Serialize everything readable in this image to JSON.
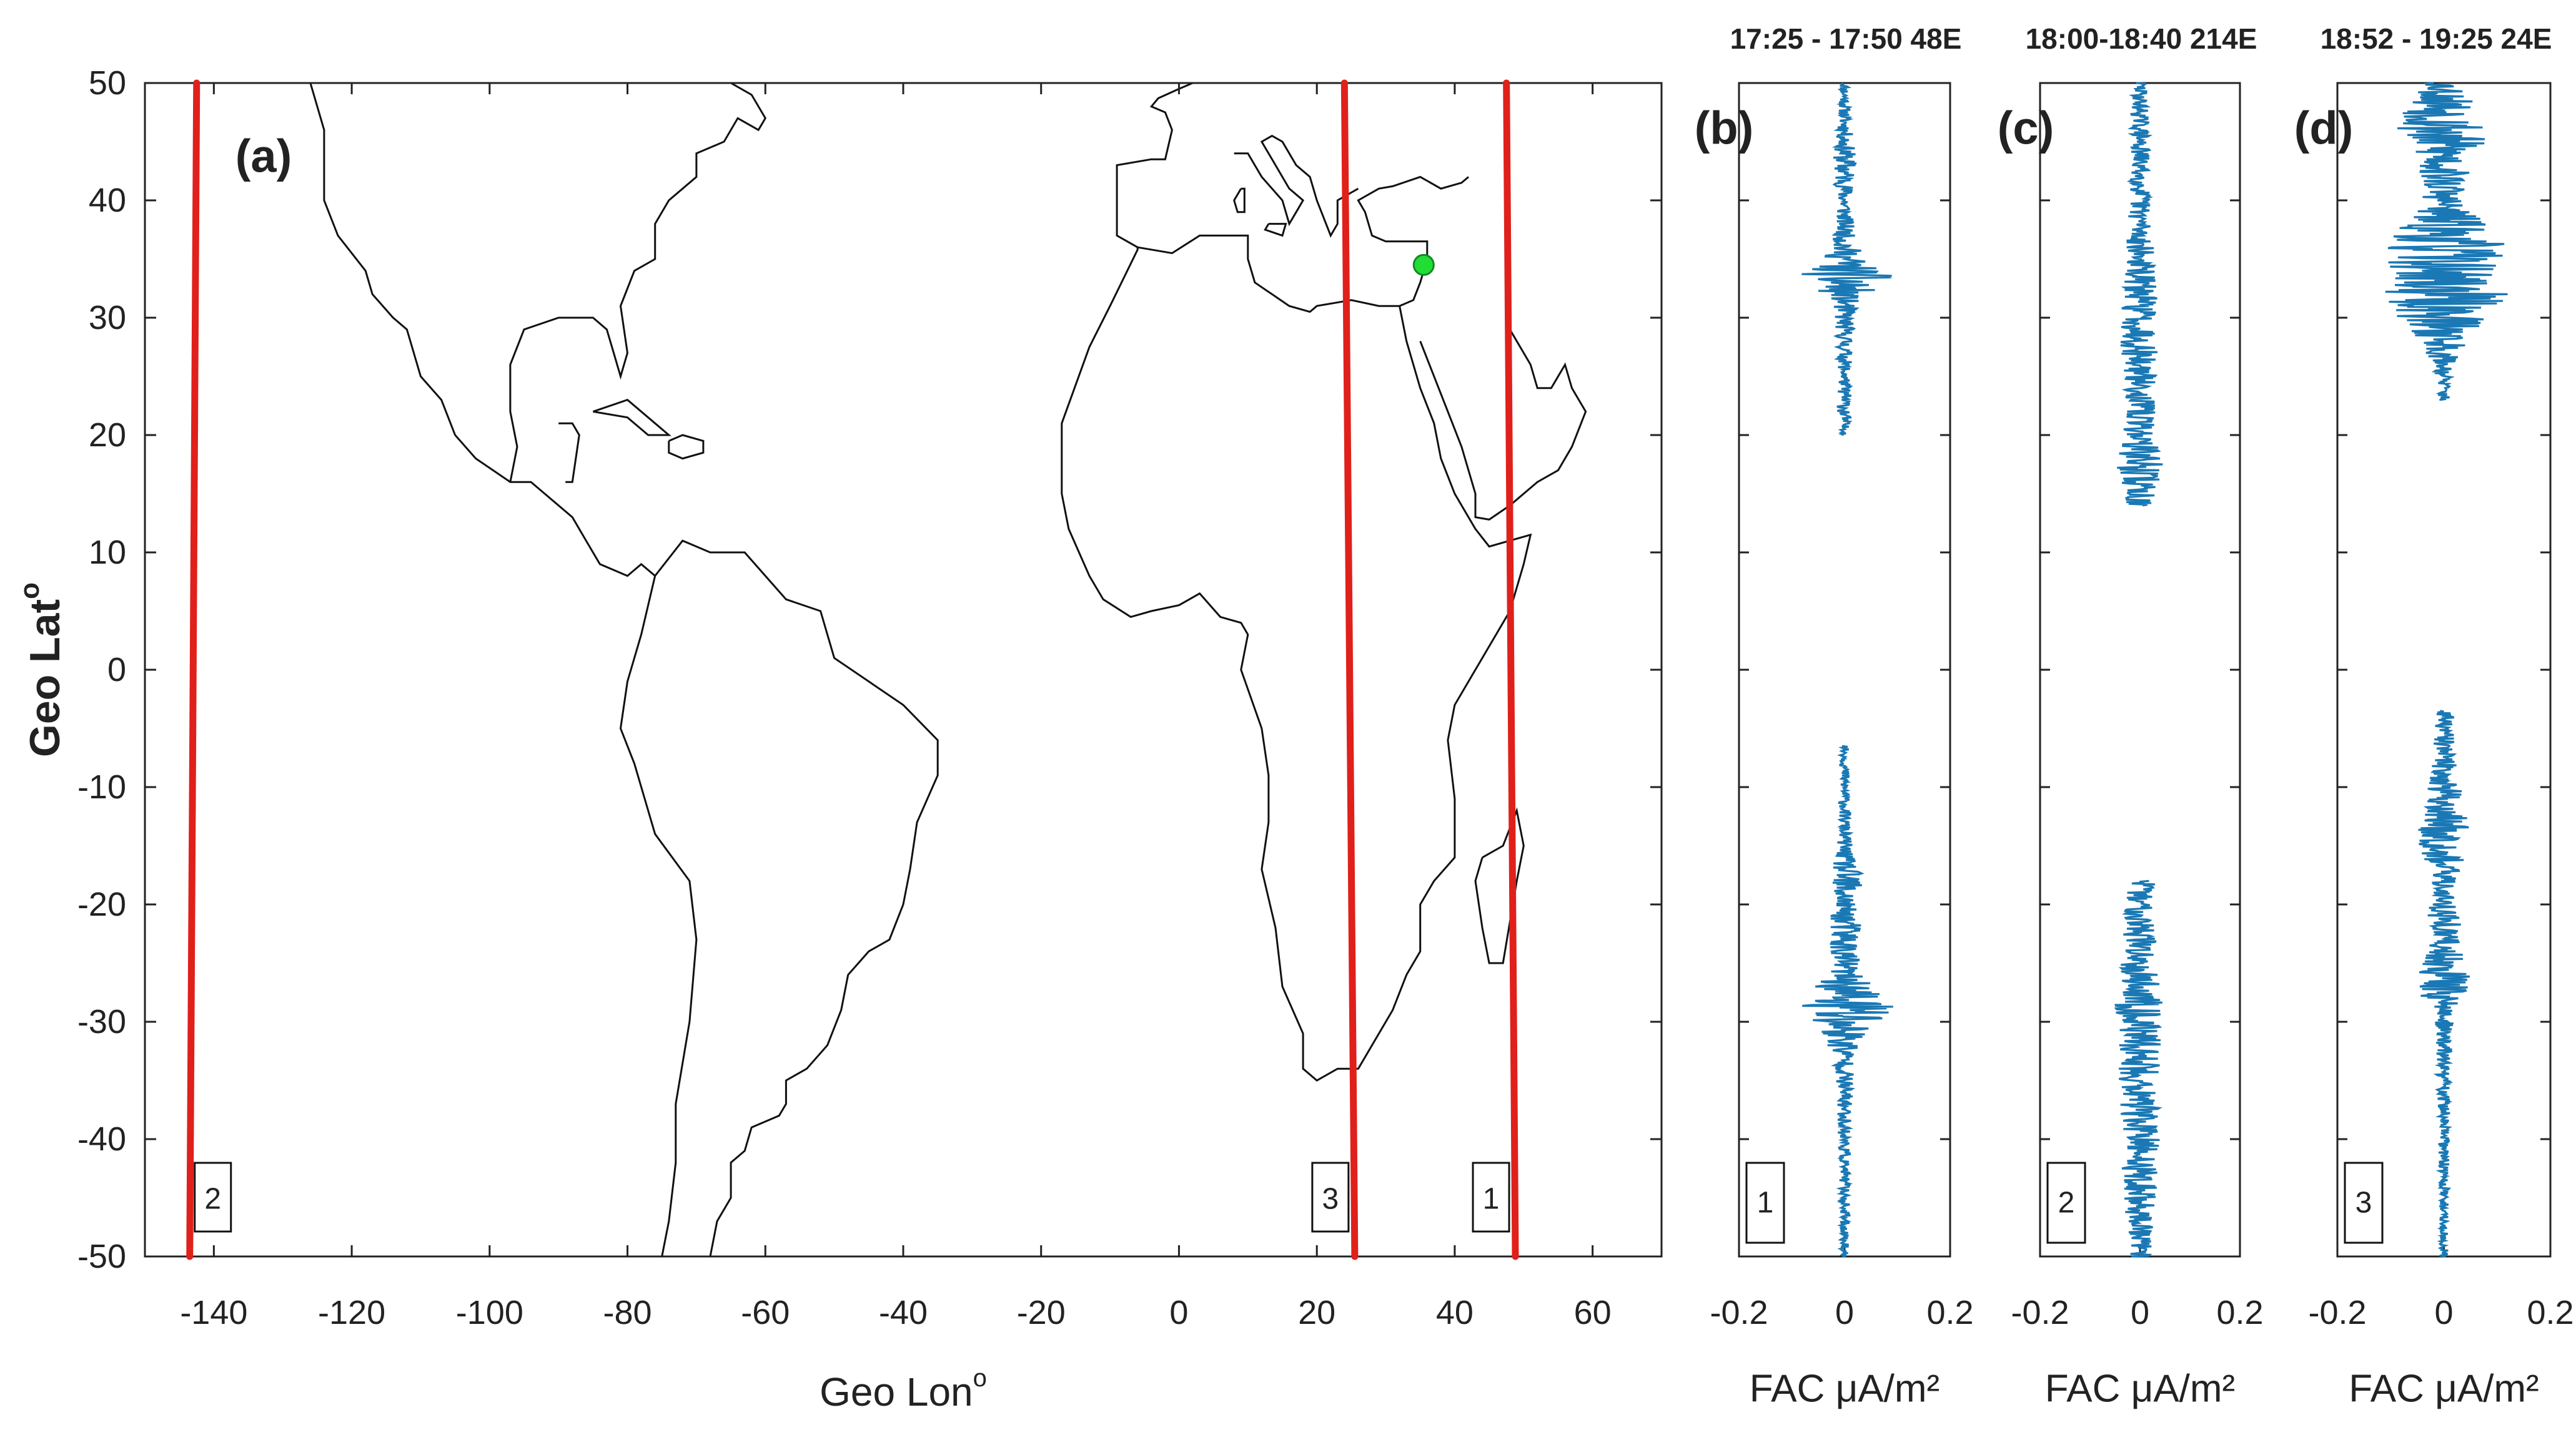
{
  "chart_data": [
    {
      "panel": "map",
      "type": "scatter",
      "panel_label": "(a)",
      "xlabel": "Geo Lon",
      "ylabel": "Geo Lat",
      "xlim": [
        -150,
        70
      ],
      "ylim": [
        -50,
        50
      ],
      "xticks": [
        "-140",
        "-120",
        "-100",
        "-80",
        "-60",
        "-40",
        "-20",
        "0",
        "20",
        "40",
        "60"
      ],
      "yticks": [
        "50",
        "40",
        "30",
        "20",
        "10",
        "0",
        "-10",
        "-20",
        "-30",
        "-40",
        "-50"
      ],
      "grid": false,
      "series": [
        {
          "name": "1",
          "color": "#e0201b",
          "x": [
            47.5,
            48.8
          ],
          "y": [
            50,
            -50
          ]
        },
        {
          "name": "2",
          "color": "#e0201b",
          "x": [
            -142.5,
            -143.5
          ],
          "y": [
            50,
            -50
          ]
        },
        {
          "name": "3",
          "color": "#e0201b",
          "x": [
            24.0,
            25.5
          ],
          "y": [
            50,
            -50
          ]
        }
      ],
      "marker": {
        "color": "#22dd33",
        "x": [
          35.5
        ],
        "y": [
          34.5
        ]
      }
    },
    {
      "panel": "b",
      "type": "line",
      "title": "17:25 - 17:50  48E",
      "panel_label": "(b)",
      "box_label": "1",
      "xlabel": "FAC μA/m²",
      "xlim": [
        -0.2,
        0.2
      ],
      "xticks": [
        "-0.2",
        "0",
        "0.2"
      ],
      "ylim": [
        -50,
        50
      ],
      "color": "#1a78b4",
      "segments": [
        {
          "y_range": [
            50,
            20
          ],
          "amplitude": [
            [
              50,
              0.01
            ],
            [
              47,
              0.012
            ],
            [
              45,
              0.018
            ],
            [
              43,
              0.025
            ],
            [
              40,
              0.015
            ],
            [
              37,
              0.02
            ],
            [
              35,
              0.04
            ],
            [
              33,
              0.11
            ],
            [
              32,
              0.03
            ],
            [
              30,
              0.02
            ],
            [
              27,
              0.015
            ],
            [
              25,
              0.012
            ],
            [
              22,
              0.015
            ],
            [
              20,
              0.005
            ]
          ]
        },
        {
          "y_range": [
            -6.5,
            -50
          ],
          "amplitude": [
            [
              -6.5,
              0.008
            ],
            [
              -10,
              0.01
            ],
            [
              -14,
              0.012
            ],
            [
              -16,
              0.018
            ],
            [
              -18,
              0.04
            ],
            [
              -20,
              0.02
            ],
            [
              -22,
              0.035
            ],
            [
              -24,
              0.03
            ],
            [
              -26,
              0.03
            ],
            [
              -28,
              0.09
            ],
            [
              -29,
              0.12
            ],
            [
              -31,
              0.05
            ],
            [
              -33,
              0.02
            ],
            [
              -37,
              0.015
            ],
            [
              -42,
              0.01
            ],
            [
              -46,
              0.01
            ],
            [
              -50,
              0.008
            ]
          ]
        }
      ]
    },
    {
      "panel": "c",
      "type": "line",
      "title": "18:00-18:40  214E",
      "panel_label": "(c)",
      "box_label": "2",
      "xlabel": "FAC μA/m²",
      "xlim": [
        -0.2,
        0.2
      ],
      "xticks": [
        "-0.2",
        "0",
        "0.2"
      ],
      "ylim": [
        -50,
        50
      ],
      "color": "#1a78b4",
      "segments": [
        {
          "y_range": [
            50,
            14
          ],
          "amplitude": [
            [
              50,
              0.015
            ],
            [
              45,
              0.02
            ],
            [
              42,
              0.02
            ],
            [
              38,
              0.025
            ],
            [
              35,
              0.03
            ],
            [
              32,
              0.035
            ],
            [
              28,
              0.04
            ],
            [
              24,
              0.03
            ],
            [
              20,
              0.035
            ],
            [
              17,
              0.05
            ],
            [
              14,
              0.03
            ]
          ]
        },
        {
          "y_range": [
            -18,
            -50
          ],
          "amplitude": [
            [
              -18,
              0.03
            ],
            [
              -20,
              0.03
            ],
            [
              -23,
              0.035
            ],
            [
              -26,
              0.04
            ],
            [
              -29,
              0.05
            ],
            [
              -31,
              0.04
            ],
            [
              -34,
              0.05
            ],
            [
              -37,
              0.04
            ],
            [
              -40,
              0.04
            ],
            [
              -44,
              0.035
            ],
            [
              -47,
              0.03
            ],
            [
              -50,
              0.025
            ]
          ]
        }
      ]
    },
    {
      "panel": "d",
      "type": "line",
      "title": "18:52 - 19:25  24E",
      "panel_label": "(d)",
      "box_label": "3",
      "xlabel": "FAC μA/m²",
      "xlim": [
        -0.2,
        0.2
      ],
      "xticks": [
        "-0.2",
        "0",
        "0.2"
      ],
      "ylim": [
        -50,
        50
      ],
      "color": "#1a78b4",
      "segments": [
        {
          "y_range": [
            50,
            23
          ],
          "amplitude": [
            [
              50,
              0.04
            ],
            [
              48,
              0.07
            ],
            [
              46,
              0.1
            ],
            [
              44,
              0.06
            ],
            [
              42,
              0.05
            ],
            [
              40,
              0.04
            ],
            [
              38,
              0.08
            ],
            [
              36,
              0.12
            ],
            [
              34,
              0.1
            ],
            [
              32,
              0.12
            ],
            [
              30,
              0.09
            ],
            [
              28,
              0.05
            ],
            [
              26,
              0.02
            ],
            [
              23,
              0.01
            ]
          ]
        },
        {
          "y_range": [
            -3.5,
            -50
          ],
          "amplitude": [
            [
              -3.5,
              0.02
            ],
            [
              -6,
              0.02
            ],
            [
              -9,
              0.025
            ],
            [
              -11,
              0.04
            ],
            [
              -13,
              0.05
            ],
            [
              -15,
              0.05
            ],
            [
              -17,
              0.03
            ],
            [
              -19,
              0.02
            ],
            [
              -21,
              0.035
            ],
            [
              -23,
              0.03
            ],
            [
              -25,
              0.04
            ],
            [
              -27,
              0.06
            ],
            [
              -29,
              0.02
            ],
            [
              -33,
              0.015
            ],
            [
              -37,
              0.012
            ],
            [
              -42,
              0.01
            ],
            [
              -46,
              0.01
            ],
            [
              -50,
              0.008
            ]
          ]
        }
      ]
    }
  ]
}
